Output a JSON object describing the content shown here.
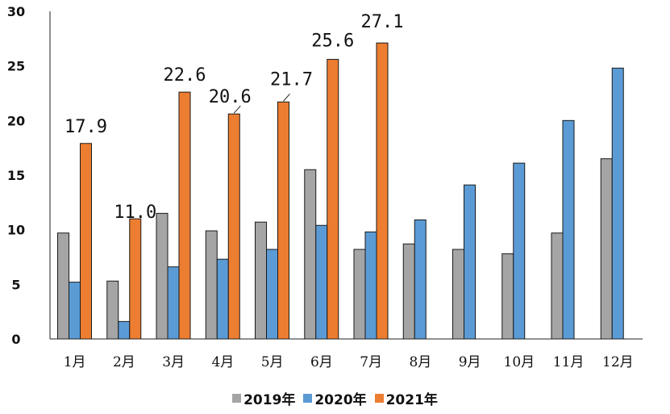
{
  "chart_data": {
    "type": "bar",
    "categories": [
      "1月",
      "2月",
      "3月",
      "4月",
      "5月",
      "6月",
      "7月",
      "8月",
      "9月",
      "10月",
      "11月",
      "12月"
    ],
    "series": [
      {
        "name": "2019年",
        "color": "#a5a5a5",
        "values": [
          9.7,
          5.3,
          11.5,
          9.9,
          10.7,
          15.5,
          8.2,
          8.7,
          8.2,
          7.8,
          9.7,
          16.5
        ]
      },
      {
        "name": "2020年",
        "color": "#5b9bd5",
        "values": [
          5.2,
          1.6,
          6.6,
          7.3,
          8.2,
          10.4,
          9.8,
          10.9,
          14.1,
          16.1,
          20.0,
          24.8
        ]
      },
      {
        "name": "2021年",
        "color": "#ed7d31",
        "values": [
          17.9,
          11.0,
          22.6,
          20.6,
          21.7,
          25.6,
          27.1,
          null,
          null,
          null,
          null,
          null
        ]
      }
    ],
    "data_labels": [
      "17.9",
      "11.0",
      "22.6",
      "20.6",
      "21.7",
      "25.6",
      "27.1"
    ],
    "yticks": [
      "0",
      "5",
      "10",
      "15",
      "20",
      "25",
      "30"
    ],
    "ylim": [
      0,
      30
    ],
    "grid": false,
    "legend_position": "bottom",
    "title": "",
    "xlabel": "",
    "ylabel": ""
  }
}
